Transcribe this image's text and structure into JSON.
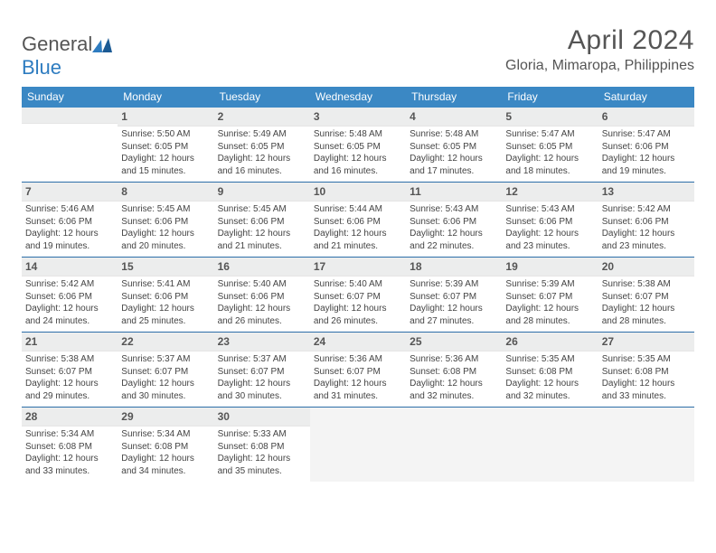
{
  "logo": {
    "textGeneral": "General",
    "textBlue": "Blue"
  },
  "title": "April 2024",
  "location": "Gloria, Mimaropa, Philippines",
  "colors": {
    "headerBar": "#3b88c4",
    "weekDivider": "#2c6ea8",
    "dayNumBg": "#eceded",
    "text": "#444444"
  },
  "weekdays": [
    "Sunday",
    "Monday",
    "Tuesday",
    "Wednesday",
    "Thursday",
    "Friday",
    "Saturday"
  ],
  "weeks": [
    [
      {
        "n": "",
        "sunrise": "",
        "sunset": "",
        "daylight": ""
      },
      {
        "n": "1",
        "sunrise": "Sunrise: 5:50 AM",
        "sunset": "Sunset: 6:05 PM",
        "daylight": "Daylight: 12 hours and 15 minutes."
      },
      {
        "n": "2",
        "sunrise": "Sunrise: 5:49 AM",
        "sunset": "Sunset: 6:05 PM",
        "daylight": "Daylight: 12 hours and 16 minutes."
      },
      {
        "n": "3",
        "sunrise": "Sunrise: 5:48 AM",
        "sunset": "Sunset: 6:05 PM",
        "daylight": "Daylight: 12 hours and 16 minutes."
      },
      {
        "n": "4",
        "sunrise": "Sunrise: 5:48 AM",
        "sunset": "Sunset: 6:05 PM",
        "daylight": "Daylight: 12 hours and 17 minutes."
      },
      {
        "n": "5",
        "sunrise": "Sunrise: 5:47 AM",
        "sunset": "Sunset: 6:05 PM",
        "daylight": "Daylight: 12 hours and 18 minutes."
      },
      {
        "n": "6",
        "sunrise": "Sunrise: 5:47 AM",
        "sunset": "Sunset: 6:06 PM",
        "daylight": "Daylight: 12 hours and 19 minutes."
      }
    ],
    [
      {
        "n": "7",
        "sunrise": "Sunrise: 5:46 AM",
        "sunset": "Sunset: 6:06 PM",
        "daylight": "Daylight: 12 hours and 19 minutes."
      },
      {
        "n": "8",
        "sunrise": "Sunrise: 5:45 AM",
        "sunset": "Sunset: 6:06 PM",
        "daylight": "Daylight: 12 hours and 20 minutes."
      },
      {
        "n": "9",
        "sunrise": "Sunrise: 5:45 AM",
        "sunset": "Sunset: 6:06 PM",
        "daylight": "Daylight: 12 hours and 21 minutes."
      },
      {
        "n": "10",
        "sunrise": "Sunrise: 5:44 AM",
        "sunset": "Sunset: 6:06 PM",
        "daylight": "Daylight: 12 hours and 21 minutes."
      },
      {
        "n": "11",
        "sunrise": "Sunrise: 5:43 AM",
        "sunset": "Sunset: 6:06 PM",
        "daylight": "Daylight: 12 hours and 22 minutes."
      },
      {
        "n": "12",
        "sunrise": "Sunrise: 5:43 AM",
        "sunset": "Sunset: 6:06 PM",
        "daylight": "Daylight: 12 hours and 23 minutes."
      },
      {
        "n": "13",
        "sunrise": "Sunrise: 5:42 AM",
        "sunset": "Sunset: 6:06 PM",
        "daylight": "Daylight: 12 hours and 23 minutes."
      }
    ],
    [
      {
        "n": "14",
        "sunrise": "Sunrise: 5:42 AM",
        "sunset": "Sunset: 6:06 PM",
        "daylight": "Daylight: 12 hours and 24 minutes."
      },
      {
        "n": "15",
        "sunrise": "Sunrise: 5:41 AM",
        "sunset": "Sunset: 6:06 PM",
        "daylight": "Daylight: 12 hours and 25 minutes."
      },
      {
        "n": "16",
        "sunrise": "Sunrise: 5:40 AM",
        "sunset": "Sunset: 6:06 PM",
        "daylight": "Daylight: 12 hours and 26 minutes."
      },
      {
        "n": "17",
        "sunrise": "Sunrise: 5:40 AM",
        "sunset": "Sunset: 6:07 PM",
        "daylight": "Daylight: 12 hours and 26 minutes."
      },
      {
        "n": "18",
        "sunrise": "Sunrise: 5:39 AM",
        "sunset": "Sunset: 6:07 PM",
        "daylight": "Daylight: 12 hours and 27 minutes."
      },
      {
        "n": "19",
        "sunrise": "Sunrise: 5:39 AM",
        "sunset": "Sunset: 6:07 PM",
        "daylight": "Daylight: 12 hours and 28 minutes."
      },
      {
        "n": "20",
        "sunrise": "Sunrise: 5:38 AM",
        "sunset": "Sunset: 6:07 PM",
        "daylight": "Daylight: 12 hours and 28 minutes."
      }
    ],
    [
      {
        "n": "21",
        "sunrise": "Sunrise: 5:38 AM",
        "sunset": "Sunset: 6:07 PM",
        "daylight": "Daylight: 12 hours and 29 minutes."
      },
      {
        "n": "22",
        "sunrise": "Sunrise: 5:37 AM",
        "sunset": "Sunset: 6:07 PM",
        "daylight": "Daylight: 12 hours and 30 minutes."
      },
      {
        "n": "23",
        "sunrise": "Sunrise: 5:37 AM",
        "sunset": "Sunset: 6:07 PM",
        "daylight": "Daylight: 12 hours and 30 minutes."
      },
      {
        "n": "24",
        "sunrise": "Sunrise: 5:36 AM",
        "sunset": "Sunset: 6:07 PM",
        "daylight": "Daylight: 12 hours and 31 minutes."
      },
      {
        "n": "25",
        "sunrise": "Sunrise: 5:36 AM",
        "sunset": "Sunset: 6:08 PM",
        "daylight": "Daylight: 12 hours and 32 minutes."
      },
      {
        "n": "26",
        "sunrise": "Sunrise: 5:35 AM",
        "sunset": "Sunset: 6:08 PM",
        "daylight": "Daylight: 12 hours and 32 minutes."
      },
      {
        "n": "27",
        "sunrise": "Sunrise: 5:35 AM",
        "sunset": "Sunset: 6:08 PM",
        "daylight": "Daylight: 12 hours and 33 minutes."
      }
    ],
    [
      {
        "n": "28",
        "sunrise": "Sunrise: 5:34 AM",
        "sunset": "Sunset: 6:08 PM",
        "daylight": "Daylight: 12 hours and 33 minutes."
      },
      {
        "n": "29",
        "sunrise": "Sunrise: 5:34 AM",
        "sunset": "Sunset: 6:08 PM",
        "daylight": "Daylight: 12 hours and 34 minutes."
      },
      {
        "n": "30",
        "sunrise": "Sunrise: 5:33 AM",
        "sunset": "Sunset: 6:08 PM",
        "daylight": "Daylight: 12 hours and 35 minutes."
      },
      {
        "n": "",
        "sunrise": "",
        "sunset": "",
        "daylight": ""
      },
      {
        "n": "",
        "sunrise": "",
        "sunset": "",
        "daylight": ""
      },
      {
        "n": "",
        "sunrise": "",
        "sunset": "",
        "daylight": ""
      },
      {
        "n": "",
        "sunrise": "",
        "sunset": "",
        "daylight": ""
      }
    ]
  ]
}
